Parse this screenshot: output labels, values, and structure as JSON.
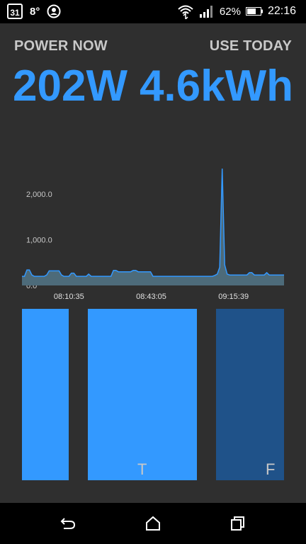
{
  "status_bar": {
    "calendar_day": "31",
    "temperature": "8°",
    "battery": "62%",
    "time": "22:16"
  },
  "header": {
    "power_label": "POWER NOW",
    "power_value": "202W",
    "usage_label": "USE TODAY",
    "usage_value": "4.6kWh"
  },
  "colors": {
    "accent": "#3399ff",
    "bar_dark": "#1f5289",
    "chart_fill": "#4d6b7a",
    "chart_line": "#3399ff"
  },
  "chart_data": {
    "type": "area",
    "y_ticks": [
      "2,000.0",
      "1,000.0",
      "0.0"
    ],
    "x_ticks": [
      "08:10:35",
      "08:43:05",
      "09:15:39"
    ],
    "ylim": [
      0,
      2000
    ],
    "x_tick_positions": [
      0.143,
      0.457,
      0.771
    ],
    "y_tick_values": [
      2000,
      1000,
      0
    ],
    "values": [
      200,
      200,
      340,
      340,
      230,
      200,
      200,
      200,
      200,
      200,
      230,
      320,
      320,
      320,
      320,
      320,
      230,
      200,
      200,
      200,
      270,
      270,
      200,
      200,
      200,
      200,
      200,
      250,
      200,
      200,
      200,
      200,
      200,
      200,
      200,
      200,
      200,
      330,
      330,
      300,
      300,
      300,
      300,
      300,
      300,
      330,
      330,
      300,
      300,
      300,
      300,
      300,
      300,
      200,
      200,
      200,
      200,
      200,
      200,
      200,
      200,
      200,
      200,
      200,
      200,
      200,
      200,
      200,
      200,
      200,
      200,
      200,
      200,
      200,
      200,
      200,
      200,
      200,
      220,
      250,
      400,
      2600,
      450,
      250,
      230,
      230,
      230,
      230,
      230,
      230,
      230,
      230,
      280,
      280,
      230,
      230,
      230,
      230,
      230,
      280,
      230,
      230,
      230,
      230,
      230,
      230,
      230
    ]
  },
  "bars": [
    {
      "letter": "",
      "tone": "light"
    },
    {
      "letter": "T",
      "tone": "light"
    },
    {
      "letter": "F",
      "tone": "dark"
    }
  ],
  "nav": {
    "back": "back-icon",
    "home": "home-icon",
    "recents": "recents-icon"
  }
}
